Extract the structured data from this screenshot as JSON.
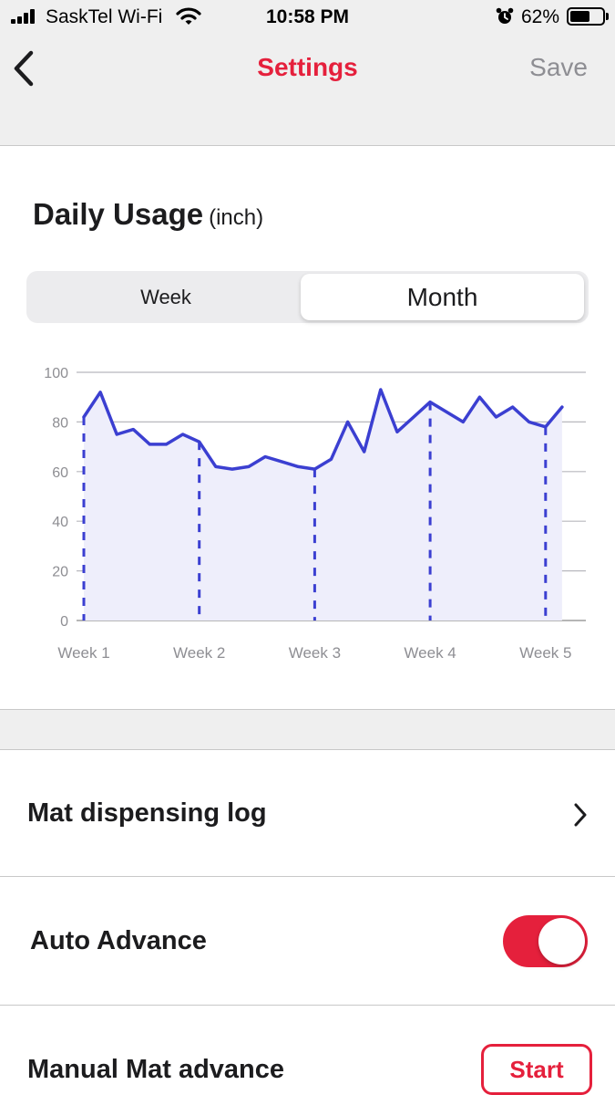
{
  "status_bar": {
    "carrier": "SaskTel Wi-Fi",
    "time": "10:58 PM",
    "battery": "62%",
    "battery_level": 0.62,
    "icons": [
      "signal-icon",
      "wifi-icon",
      "alarm-icon",
      "battery-icon"
    ]
  },
  "nav": {
    "title": "Settings",
    "save_label": "Save",
    "back_icon": "chevron-left-icon"
  },
  "usage": {
    "title": "Daily Usage",
    "unit": "(inch)",
    "tabs": [
      {
        "label": "Week",
        "selected": false
      },
      {
        "label": "Month",
        "selected": true
      }
    ]
  },
  "chart_data": {
    "type": "area",
    "title": "",
    "xlabel": "",
    "ylabel": "",
    "x_tick_labels": [
      "Week 1",
      "Week 2",
      "Week 3",
      "Week 4",
      "Week 5"
    ],
    "x_tick_day_index": [
      0,
      7,
      14,
      21,
      28
    ],
    "y_ticks": [
      0,
      20,
      40,
      60,
      80,
      100
    ],
    "ylim": [
      0,
      100
    ],
    "grid": true,
    "values": [
      82,
      92,
      75,
      77,
      71,
      71,
      75,
      72,
      62,
      61,
      62,
      66,
      64,
      62,
      61,
      65,
      80,
      68,
      93,
      76,
      82,
      88,
      84,
      80,
      90,
      82,
      86,
      80,
      78,
      86
    ],
    "line_color": "#3b3fd1",
    "fill_color": "#eeeefb",
    "marker_color": "#3b3fd1"
  },
  "rows": {
    "log_label": "Mat dispensing log",
    "auto_label": "Auto Advance",
    "auto_on": true,
    "manual_label": "Manual Mat advance",
    "start_label": "Start"
  },
  "colors": {
    "accent": "#e5203c",
    "muted": "#8e8e93",
    "background": "#efefef"
  }
}
